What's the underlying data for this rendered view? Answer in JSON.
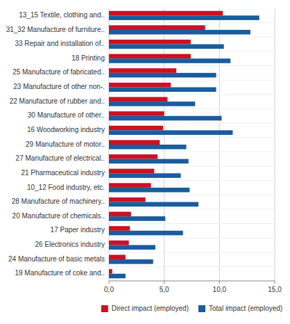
{
  "chart_data": {
    "type": "bar",
    "orientation": "horizontal",
    "categories": [
      "13_15 Textile, clothing and..",
      "31_32 Manufacture of furniture..",
      "33  Repair and installation of..",
      "18  Printing",
      "25  Manufacture of fabricated..",
      "23  Manufacture of other non-.",
      "22  Manufacture of rubber and..",
      "30  Manufacture of other..",
      "16  Woodworking industry",
      "29  Manufacture of motor..",
      "27  Manufacture of electrical..",
      "21  Pharmaceutical industry",
      "10_12  Food industry, etc.",
      "28  Manufacture of machinery..",
      "20  Manufacture of chemicals..",
      "17  Paper industry",
      "26  Electronics industry",
      "24  Manufacture of basic metals",
      "19  Manufacture of coke and.."
    ],
    "series": [
      {
        "name": "Direct impact (employed)",
        "color": "#cc1122",
        "values": [
          10.3,
          8.7,
          7.4,
          7.4,
          6.1,
          5.6,
          5.3,
          5.0,
          4.9,
          4.6,
          4.4,
          4.1,
          3.8,
          3.3,
          2.0,
          1.9,
          1.8,
          1.5,
          0.3
        ]
      },
      {
        "name": "Total impact (employed)",
        "color": "#1a5c9e",
        "values": [
          13.6,
          12.8,
          10.4,
          11.0,
          9.7,
          9.7,
          7.8,
          10.2,
          11.2,
          7.0,
          7.2,
          6.5,
          7.3,
          8.1,
          5.1,
          6.7,
          4.2,
          4.0,
          1.5
        ]
      }
    ],
    "xlim": [
      0,
      15.0
    ],
    "xticks": [
      {
        "value": 0.0,
        "label": "0,0"
      },
      {
        "value": 5.0,
        "label": "5,0"
      },
      {
        "value": 10.0,
        "label": "10,0"
      },
      {
        "value": 15.0,
        "label": "15,0"
      }
    ],
    "grid": true,
    "legend": "bottom"
  }
}
